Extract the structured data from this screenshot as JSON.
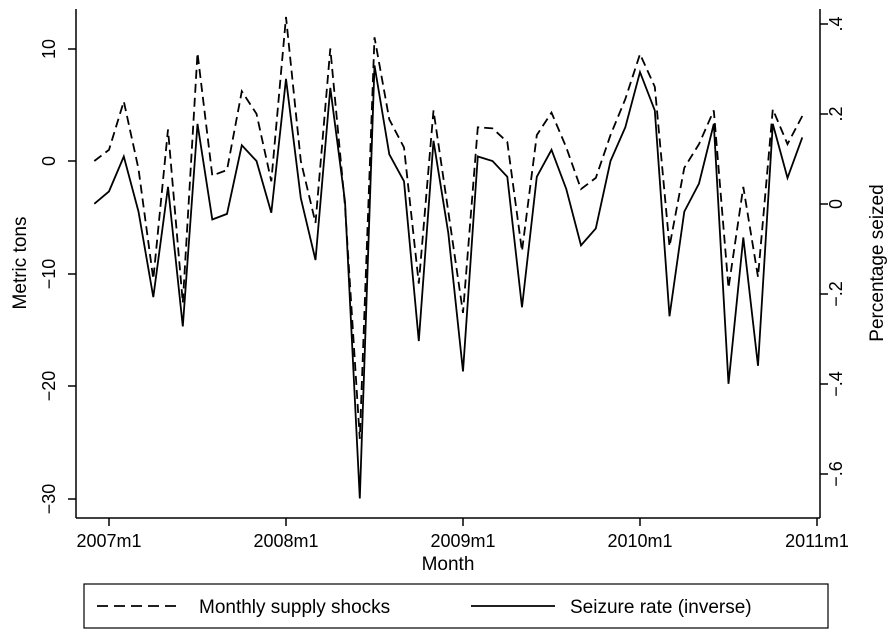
{
  "chart_data": {
    "type": "line",
    "xlabel": "Month",
    "ylabel_left": "Metric tons",
    "ylabel_right": "Percentage seized",
    "x_ticks": [
      "2007m1",
      "2008m1",
      "2009m1",
      "2010m1",
      "2011m1"
    ],
    "y_left_ticks": [
      "10",
      "0",
      "−10",
      "−20",
      "−30"
    ],
    "y_right_ticks": [
      ".4",
      ".2",
      "0",
      "−.2",
      "−.4",
      "−.6"
    ],
    "ylim_left": [
      -31,
      14
    ],
    "ylim_right": [
      -0.68,
      0.44
    ],
    "grid": false,
    "legend_position": "bottom",
    "series": [
      {
        "name": "Monthly supply shocks",
        "axis": "left",
        "style": "dashed",
        "x": [
          "2006m12",
          "2007m1",
          "2007m2",
          "2007m3",
          "2007m4",
          "2007m5",
          "2007m6",
          "2007m7",
          "2007m8",
          "2007m9",
          "2007m10",
          "2007m11",
          "2007m12",
          "2008m1",
          "2008m2",
          "2008m3",
          "2008m4",
          "2008m5",
          "2008m6",
          "2008m7",
          "2008m8",
          "2008m9",
          "2008m10",
          "2008m11",
          "2008m12",
          "2009m1",
          "2009m2",
          "2009m3",
          "2009m4",
          "2009m5",
          "2009m6",
          "2009m7",
          "2009m8",
          "2009m9",
          "2009m10",
          "2009m11",
          "2009m12",
          "2010m1",
          "2010m2",
          "2010m3",
          "2010m4",
          "2010m5",
          "2010m6",
          "2010m7",
          "2010m8",
          "2010m9",
          "2010m10",
          "2010m11",
          "2010m12"
        ],
        "values": [
          0.0,
          1.0,
          5.3,
          -0.7,
          -10.5,
          2.8,
          -12.6,
          9.6,
          -1.3,
          -0.8,
          6.2,
          4.2,
          -1.8,
          12.8,
          0.0,
          -5.5,
          10.0,
          -4.0,
          -24.7,
          11.0,
          3.7,
          1.2,
          -10.9,
          4.5,
          -4.5,
          -13.5,
          3.0,
          2.9,
          1.7,
          -8.0,
          2.3,
          4.3,
          1.2,
          -2.5,
          -1.5,
          2.3,
          5.5,
          9.5,
          6.6,
          -7.6,
          -0.6,
          1.5,
          4.5,
          -11.3,
          -2.3,
          -10.3,
          4.6,
          1.5,
          4.0
        ]
      },
      {
        "name": "Seizure rate (inverse)",
        "axis": "left",
        "style": "solid",
        "x": [
          "2006m12",
          "2007m1",
          "2007m2",
          "2007m3",
          "2007m4",
          "2007m5",
          "2007m6",
          "2007m7",
          "2007m8",
          "2007m9",
          "2007m10",
          "2007m11",
          "2007m12",
          "2008m1",
          "2008m2",
          "2008m3",
          "2008m4",
          "2008m5",
          "2008m6",
          "2008m7",
          "2008m8",
          "2008m9",
          "2008m10",
          "2008m11",
          "2008m12",
          "2009m1",
          "2009m2",
          "2009m3",
          "2009m4",
          "2009m5",
          "2009m6",
          "2009m7",
          "2009m8",
          "2009m9",
          "2009m10",
          "2009m11",
          "2009m12",
          "2010m1",
          "2010m2",
          "2010m3",
          "2010m4",
          "2010m5",
          "2010m6",
          "2010m7",
          "2010m8",
          "2010m9",
          "2010m10",
          "2010m11",
          "2010m12"
        ],
        "values": [
          -3.8,
          -2.7,
          0.4,
          -4.5,
          -12.1,
          -2.3,
          -14.7,
          3.3,
          -5.2,
          -4.7,
          1.4,
          0.0,
          -4.6,
          7.3,
          -3.3,
          -8.8,
          6.5,
          -3.6,
          -30.0,
          8.5,
          0.6,
          -1.8,
          -16.0,
          1.8,
          -6.4,
          -18.7,
          0.4,
          0.0,
          -1.4,
          -13.0,
          -1.4,
          1.0,
          -2.5,
          -7.5,
          -6.0,
          0.0,
          3.0,
          7.9,
          4.5,
          -13.8,
          -4.5,
          -2.0,
          3.3,
          -19.8,
          -6.8,
          -18.2,
          3.3,
          -1.5,
          2.1
        ]
      }
    ]
  },
  "legend": {
    "dashed_label": "Monthly supply shocks",
    "solid_label": "Seizure rate (inverse)"
  }
}
